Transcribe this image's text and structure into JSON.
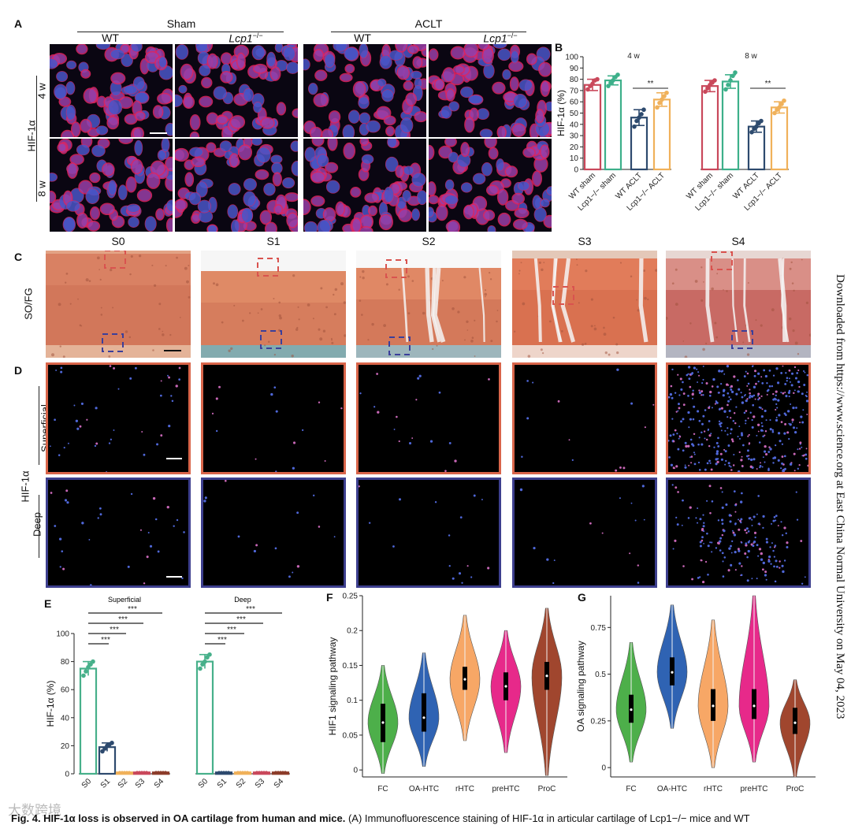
{
  "panelA": {
    "letter": "A",
    "groups": [
      "Sham",
      "ACLT"
    ],
    "genotypes": [
      "WT",
      "Lcp1",
      "WT",
      "Lcp1"
    ],
    "genotype_sup": "−/−",
    "row_label": "HIF-1α",
    "timepoints": [
      "4 w",
      "8 w"
    ]
  },
  "panelB": {
    "letter": "B",
    "ylabel": "HIF-1α (%)",
    "subtitles": [
      "4 w",
      "8 w"
    ],
    "categories": [
      "WT sham",
      "Lcp1−/− sham",
      "WT ACLT",
      "Lcp1−/− ACLT"
    ],
    "significance": "**"
  },
  "panelC": {
    "letter": "C",
    "stages": [
      "S0",
      "S1",
      "S2",
      "S3",
      "S4"
    ],
    "row_label": "SO/FG"
  },
  "panelD": {
    "letter": "D",
    "row_label": "HIF-1α",
    "zones": [
      "Superficial",
      "Deep"
    ]
  },
  "panelE": {
    "letter": "E",
    "ylabel": "HIF-1α (%)",
    "subtitles": [
      "Superficial",
      "Deep"
    ],
    "significance": "***"
  },
  "panelF": {
    "letter": "F",
    "ylabel": "HIF1 signaling pathway"
  },
  "panelG": {
    "letter": "G",
    "ylabel": "OA signaling pathway"
  },
  "watermark": "Downloaded from https://www.science.org at East China Normal University on May 04, 2023",
  "logo": "大数跨境",
  "caption": {
    "bold": "Fig. 4. HIF-1α loss is observed in OA cartilage from human and mice.",
    "rest": " (A) Immunofluorescence staining of HIF-1α in articular cartilage of Lcp1−/− mice and WT"
  },
  "colors": {
    "wt_sham": "#c9485b",
    "lcp1_sham": "#3db08a",
    "wt_aclt": "#2d4a6e",
    "lcp1_aclt": "#f0b15a",
    "s0": "#47b08a",
    "s1": "#2d4a6e",
    "s2": "#f0b15a",
    "s3": "#c9485b",
    "s4": "#8c3c2a",
    "violin": [
      "#4daf4a",
      "#2f63b3",
      "#f7a766",
      "#e7298a",
      "#a0462e"
    ]
  },
  "chart_data": [
    {
      "type": "bar",
      "panel": "B",
      "ylim": [
        0,
        100
      ],
      "yticks": [
        0,
        10,
        20,
        30,
        40,
        50,
        60,
        70,
        80,
        90,
        100
      ],
      "groups": [
        {
          "name": "4 w",
          "categories": [
            "WT sham",
            "Lcp1−/− sham",
            "WT ACLT",
            "Lcp1−/− ACLT"
          ],
          "values": [
            75,
            79,
            46,
            62
          ],
          "errors": [
            5,
            4,
            7,
            6
          ],
          "points": [
            [
              71,
              74,
              76,
              79,
              80
            ],
            [
              74,
              77,
              79,
              82,
              84
            ],
            [
              38,
              43,
              46,
              49,
              53
            ],
            [
              55,
              59,
              62,
              65,
              68
            ]
          ]
        },
        {
          "name": "8 w",
          "categories": [
            "WT sham",
            "Lcp1−/− sham",
            "WT ACLT",
            "Lcp1−/− ACLT"
          ],
          "values": [
            74,
            78,
            38,
            55
          ],
          "errors": [
            5,
            6,
            5,
            5
          ],
          "points": [
            [
              69,
              72,
              75,
              77,
              79
            ],
            [
              71,
              75,
              79,
              83,
              86
            ],
            [
              33,
              36,
              38,
              41,
              43
            ],
            [
              50,
              53,
              55,
              58,
              61
            ]
          ]
        }
      ]
    },
    {
      "type": "bar",
      "panel": "E",
      "ylim": [
        0,
        100
      ],
      "yticks": [
        0,
        20,
        40,
        60,
        80,
        100
      ],
      "groups": [
        {
          "name": "Superficial",
          "categories": [
            "S0",
            "S1",
            "S2",
            "S3",
            "S4"
          ],
          "values": [
            75,
            19,
            1,
            1,
            1
          ],
          "errors": [
            5,
            3,
            0.5,
            0.5,
            0.5
          ],
          "points": [
            [
              70,
              73,
              76,
              78,
              80
            ],
            [
              16,
              18,
              20,
              21,
              22
            ],
            [
              1,
              1,
              1,
              1,
              1
            ],
            [
              1,
              1,
              1,
              1,
              1
            ],
            [
              1,
              1,
              1,
              1,
              1
            ]
          ]
        },
        {
          "name": "Deep",
          "categories": [
            "S0",
            "S1",
            "S2",
            "S3",
            "S4"
          ],
          "values": [
            80,
            1,
            1,
            1,
            1
          ],
          "errors": [
            5,
            0.5,
            0.5,
            0.5,
            0.5
          ],
          "points": [
            [
              75,
              78,
              80,
              83,
              85
            ],
            [
              1,
              1,
              1,
              1,
              1
            ],
            [
              1,
              1,
              1,
              1,
              1
            ],
            [
              1,
              1,
              1,
              1,
              1
            ],
            [
              1,
              1,
              1,
              1,
              1
            ]
          ]
        }
      ]
    },
    {
      "type": "violin",
      "panel": "F",
      "categories": [
        "FC",
        "OA-HTC",
        "rHTC",
        "preHTC",
        "ProC"
      ],
      "ylim": [
        -0.01,
        0.25
      ],
      "yticks": [
        0,
        0.05,
        0.1,
        0.15,
        0.2,
        0.25
      ],
      "ranges": [
        [
          -0.005,
          0.15
        ],
        [
          0.005,
          0.168
        ],
        [
          0.042,
          0.222
        ],
        [
          0.025,
          0.2
        ],
        [
          -0.008,
          0.232
        ]
      ],
      "medians": [
        0.068,
        0.075,
        0.13,
        0.12,
        0.135
      ],
      "iqr": [
        [
          0.04,
          0.095
        ],
        [
          0.055,
          0.11
        ],
        [
          0.115,
          0.148
        ],
        [
          0.1,
          0.14
        ],
        [
          0.115,
          0.155
        ]
      ]
    },
    {
      "type": "violin",
      "panel": "G",
      "categories": [
        "FC",
        "OA-HTC",
        "rHTC",
        "preHTC",
        "ProC"
      ],
      "ylim": [
        -0.05,
        0.92
      ],
      "yticks": [
        0,
        0.25,
        0.5,
        0.75
      ],
      "ytick_labels": [
        "0",
        "0.25",
        "0.5",
        "0.75"
      ],
      "ranges": [
        [
          0.03,
          0.67
        ],
        [
          0.21,
          0.87
        ],
        [
          0.0,
          0.79
        ],
        [
          0.03,
          0.92
        ],
        [
          -0.05,
          0.47
        ]
      ],
      "medians": [
        0.31,
        0.51,
        0.33,
        0.33,
        0.24
      ],
      "iqr": [
        [
          0.24,
          0.39
        ],
        [
          0.44,
          0.59
        ],
        [
          0.25,
          0.42
        ],
        [
          0.26,
          0.42
        ],
        [
          0.18,
          0.32
        ]
      ]
    }
  ]
}
